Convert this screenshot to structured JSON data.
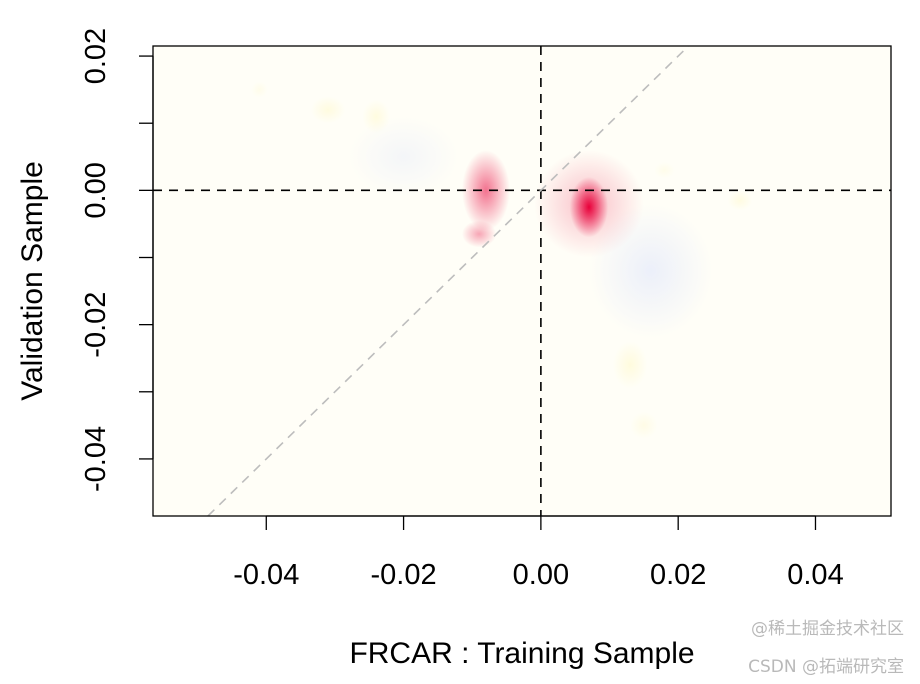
{
  "chart_data": {
    "type": "heatmap",
    "title": "",
    "xlabel": "FRCAR : Training Sample",
    "ylabel": "Validation Sample",
    "xlim": [
      -0.0565,
      0.051
    ],
    "ylim": [
      -0.0485,
      0.0215
    ],
    "x_ticks": [
      -0.04,
      -0.02,
      0.0,
      0.02,
      0.04
    ],
    "x_tick_labels": [
      "-0.04",
      "-0.02",
      "0.00",
      "0.02",
      "0.04"
    ],
    "y_ticks": [
      -0.04,
      -0.03,
      -0.02,
      -0.01,
      0.0,
      0.01,
      0.02
    ],
    "y_tick_labels": [
      "-0.04",
      "",
      "-0.02",
      "",
      "0.00",
      "",
      "0.02"
    ],
    "reference_lines": [
      {
        "kind": "vertical",
        "x": 0,
        "style": "dashed",
        "color": "#000000"
      },
      {
        "kind": "horizontal",
        "y": 0,
        "style": "dashed",
        "color": "#000000"
      },
      {
        "kind": "diagonal",
        "slope": 1,
        "intercept": 0,
        "style": "dashed",
        "color": "#bdbdbd"
      }
    ],
    "background_color": "#fffef7",
    "colors": {
      "positive": "#e8003a",
      "negative": "#c8d4ff",
      "neutral": "#fff9cc"
    },
    "density_blobs": [
      {
        "x": 0.007,
        "y": -0.0025,
        "sx": 0.0028,
        "sy": 0.0045,
        "weight": 1.0,
        "sign": "positive"
      },
      {
        "x": 0.007,
        "y": -0.002,
        "sx": 0.008,
        "sy": 0.008,
        "weight": 0.25,
        "sign": "positive"
      },
      {
        "x": -0.008,
        "y": 0.0,
        "sx": 0.0035,
        "sy": 0.006,
        "weight": 0.55,
        "sign": "positive"
      },
      {
        "x": -0.009,
        "y": -0.0065,
        "sx": 0.0025,
        "sy": 0.002,
        "weight": 0.35,
        "sign": "positive"
      },
      {
        "x": 0.016,
        "y": -0.012,
        "sx": 0.009,
        "sy": 0.01,
        "weight": 0.35,
        "sign": "negative"
      },
      {
        "x": -0.02,
        "y": 0.005,
        "sx": 0.008,
        "sy": 0.006,
        "weight": 0.2,
        "sign": "negative"
      },
      {
        "x": -0.031,
        "y": 0.012,
        "sx": 0.0025,
        "sy": 0.002,
        "weight": 0.55,
        "sign": "neutral"
      },
      {
        "x": -0.024,
        "y": 0.011,
        "sx": 0.002,
        "sy": 0.0025,
        "weight": 0.55,
        "sign": "neutral"
      },
      {
        "x": 0.013,
        "y": -0.026,
        "sx": 0.0025,
        "sy": 0.0035,
        "weight": 0.6,
        "sign": "neutral"
      },
      {
        "x": 0.015,
        "y": -0.035,
        "sx": 0.002,
        "sy": 0.002,
        "weight": 0.4,
        "sign": "neutral"
      },
      {
        "x": 0.029,
        "y": -0.0015,
        "sx": 0.0018,
        "sy": 0.0015,
        "weight": 0.5,
        "sign": "neutral"
      },
      {
        "x": 0.018,
        "y": 0.003,
        "sx": 0.0015,
        "sy": 0.0012,
        "weight": 0.3,
        "sign": "neutral"
      },
      {
        "x": -0.041,
        "y": 0.015,
        "sx": 0.0012,
        "sy": 0.0012,
        "weight": 0.3,
        "sign": "neutral"
      }
    ]
  },
  "watermark": {
    "line1": "@稀土掘金技术社区",
    "line2": "CSDN @拓端研究室"
  }
}
